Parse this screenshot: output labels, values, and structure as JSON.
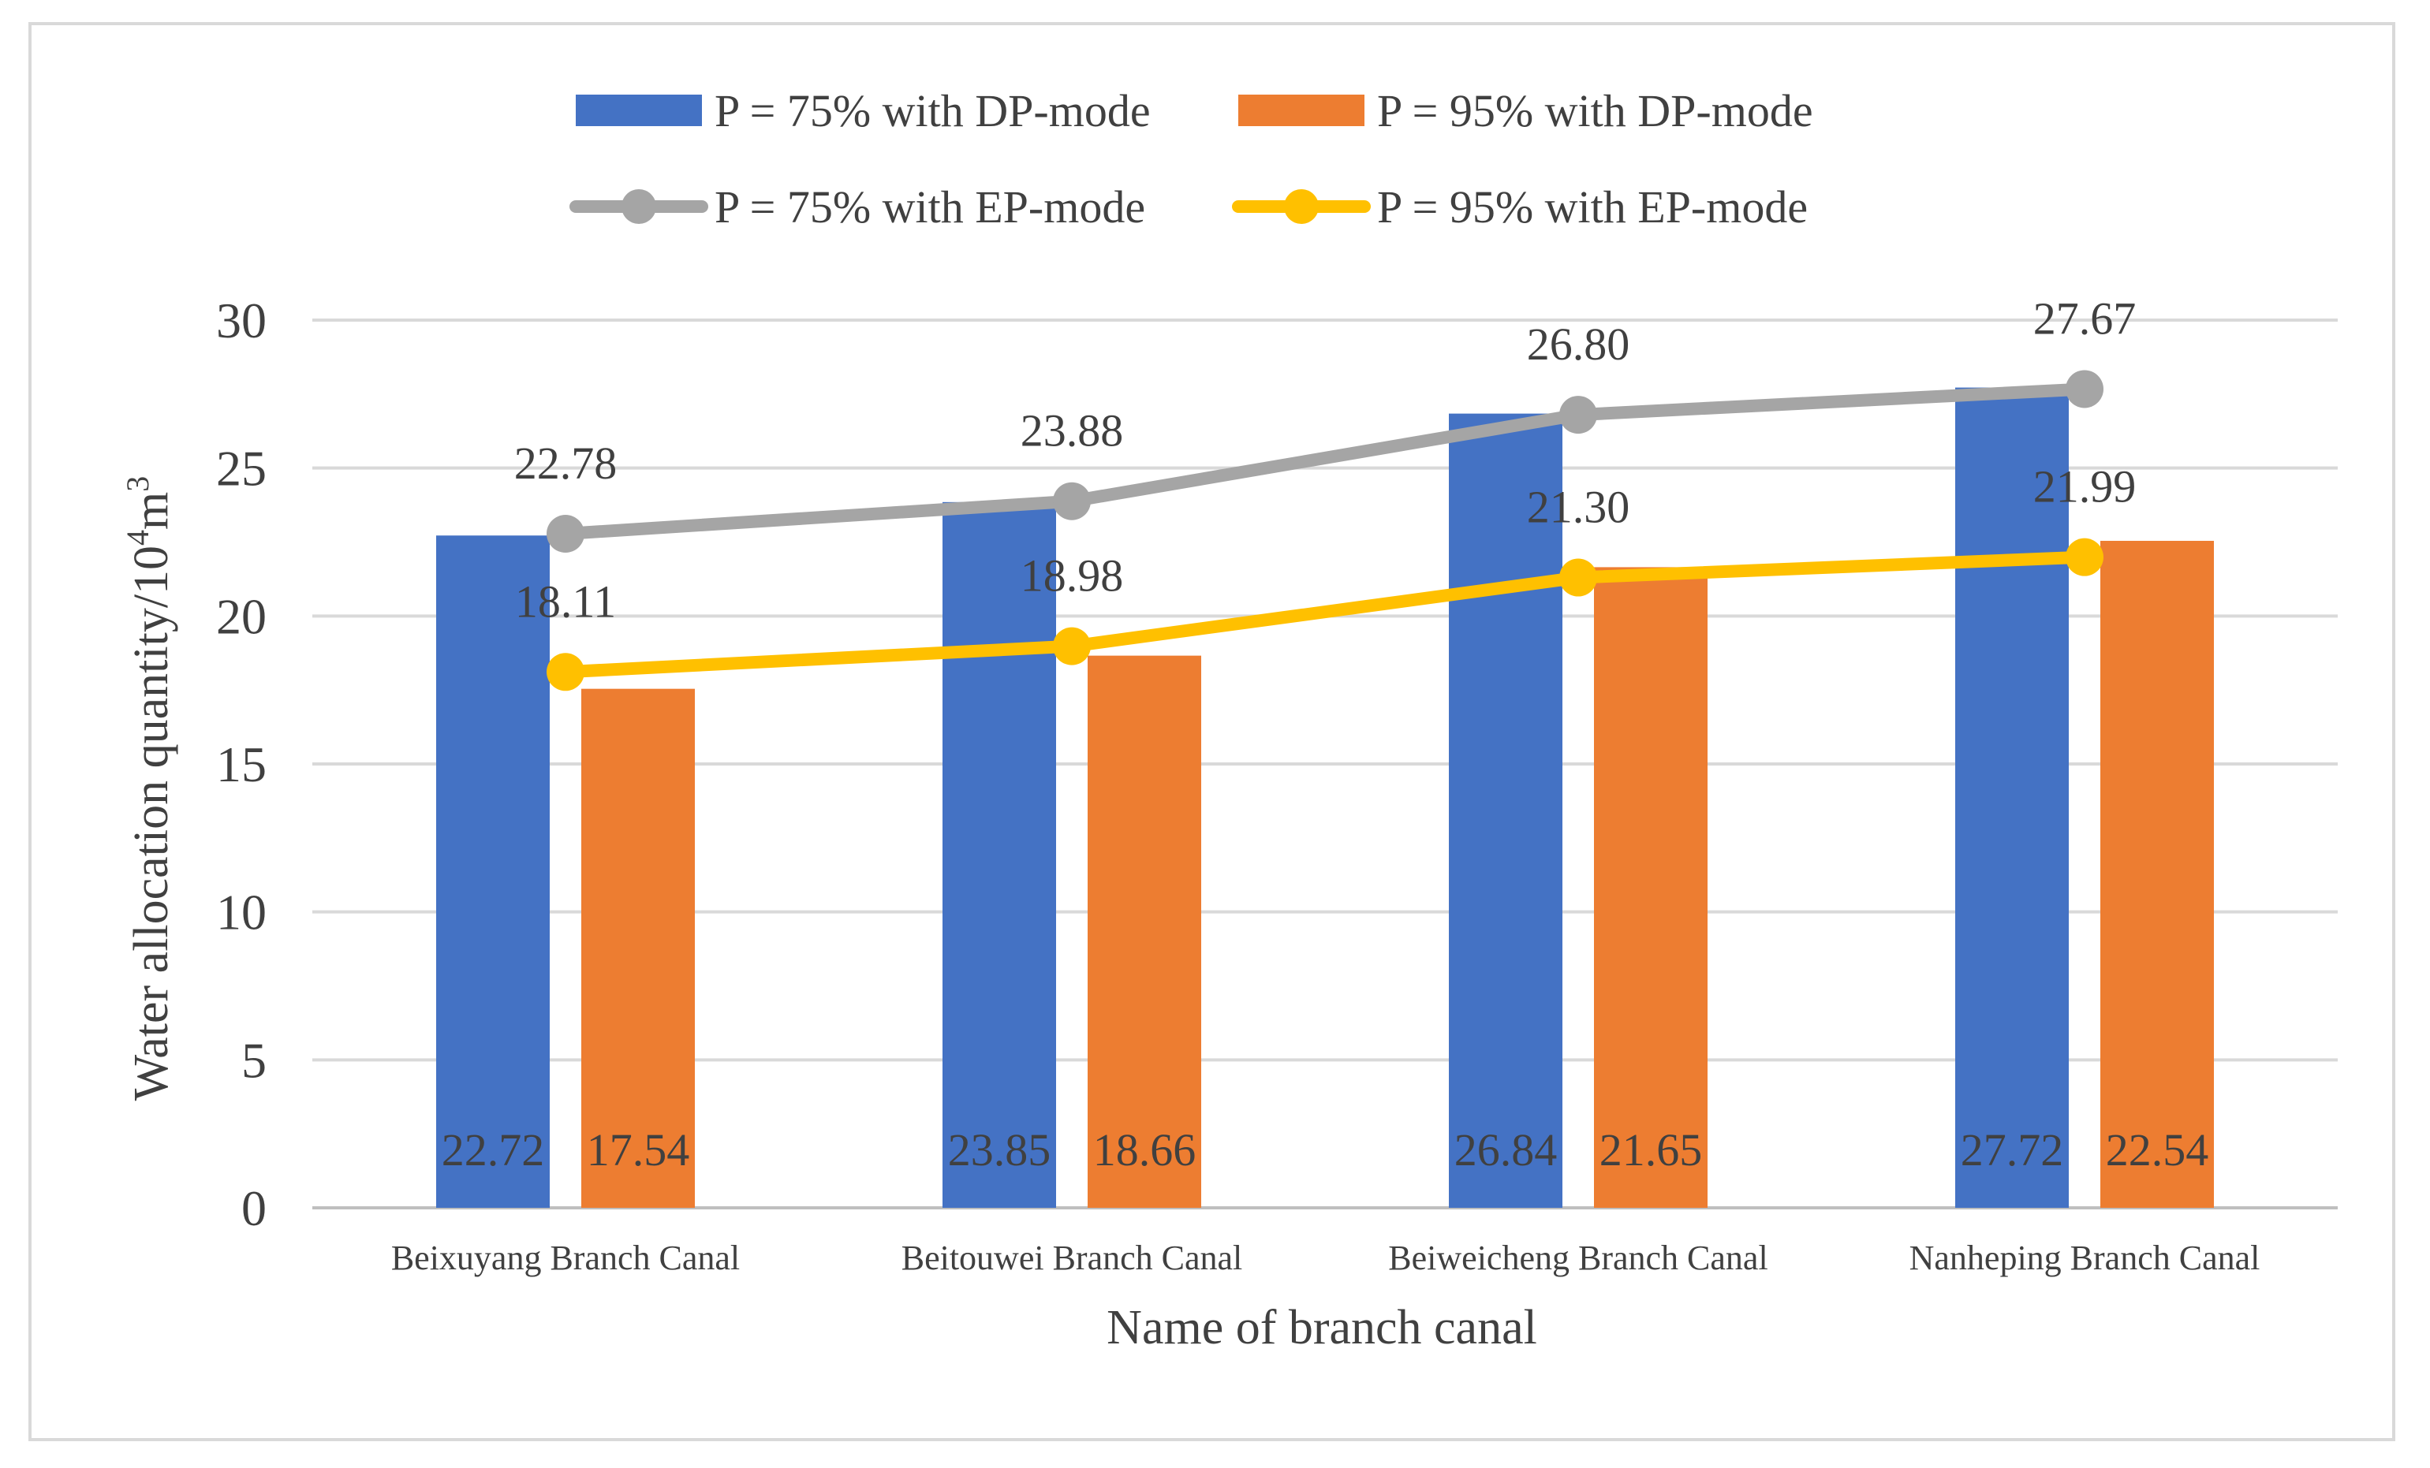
{
  "chart_data": {
    "type": "bar",
    "title": "",
    "xlabel": "Name of branch canal",
    "ylabel": "Water allocation quantity/10",
    "ylabel_sup": "4",
    "ylabel_unit": "m",
    "ylabel_sup2": "3",
    "categories": [
      "Beixuyang Branch Canal",
      "Beitouwei Branch Canal",
      "Beiweicheng Branch Canal",
      "Nanheping Branch Canal"
    ],
    "ylim": [
      0,
      30
    ],
    "yticks": [
      0,
      5,
      10,
      15,
      20,
      25,
      30
    ],
    "grid": true,
    "legend_position": "top-center",
    "bar_series": [
      {
        "name": "P = 75% with DP-mode",
        "color": "#4472C4",
        "values": [
          22.72,
          23.85,
          26.84,
          27.72
        ],
        "labels": [
          "22.72",
          "23.85",
          "26.84",
          "27.72"
        ]
      },
      {
        "name": "P = 95% with DP-mode",
        "color": "#ED7D31",
        "values": [
          17.54,
          18.66,
          21.65,
          22.54
        ],
        "labels": [
          "17.54",
          "18.66",
          "21.65",
          "22.54"
        ]
      }
    ],
    "line_series": [
      {
        "name": "P = 75% with EP-mode",
        "color": "#A5A5A5",
        "values": [
          22.78,
          23.88,
          26.8,
          27.67
        ],
        "labels": [
          "22.78",
          "23.88",
          "26.80",
          "27.67"
        ]
      },
      {
        "name": "P = 95% with EP-mode",
        "color": "#FFC000",
        "values": [
          18.11,
          18.98,
          21.3,
          21.99
        ],
        "labels": [
          "18.11",
          "18.98",
          "21.30",
          "21.99"
        ]
      }
    ]
  }
}
